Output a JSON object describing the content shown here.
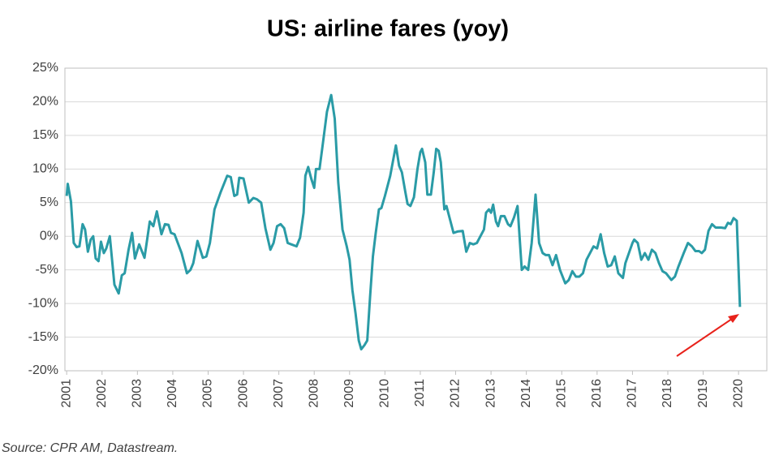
{
  "chart_data": {
    "type": "line",
    "title": "US: airline fares (yoy)",
    "source": "Source: CPR AM, Datastream.",
    "color": "#2a9ba6",
    "grid": true,
    "xlim": [
      2000.95,
      2020.8
    ],
    "xticks": [
      2001,
      2002,
      2003,
      2004,
      2005,
      2006,
      2007,
      2008,
      2009,
      2010,
      2011,
      2012,
      2013,
      2014,
      2015,
      2016,
      2017,
      2018,
      2019,
      2020
    ],
    "ylim": [
      -20,
      25
    ],
    "yticks": [
      {
        "value": -20,
        "label": "-20%"
      },
      {
        "value": -15,
        "label": "-15%"
      },
      {
        "value": -10,
        "label": "-10%"
      },
      {
        "value": -5,
        "label": "-5%"
      },
      {
        "value": 0,
        "label": "0%"
      },
      {
        "value": 5,
        "label": "5%"
      },
      {
        "value": 10,
        "label": "10%"
      },
      {
        "value": 15,
        "label": "15%"
      },
      {
        "value": 20,
        "label": "20%"
      },
      {
        "value": 25,
        "label": "25%"
      }
    ],
    "x": [
      2001.0,
      2001.03,
      2001.12,
      2001.2,
      2001.28,
      2001.36,
      2001.45,
      2001.52,
      2001.6,
      2001.68,
      2001.75,
      2001.82,
      2001.9,
      2001.97,
      2002.05,
      2002.12,
      2002.22,
      2002.35,
      2002.47,
      2002.56,
      2002.64,
      2002.75,
      2002.85,
      2002.93,
      2003.05,
      2003.2,
      2003.35,
      2003.45,
      2003.55,
      2003.68,
      2003.78,
      2003.88,
      2003.95,
      2004.05,
      2004.25,
      2004.4,
      2004.5,
      2004.58,
      2004.7,
      2004.85,
      2004.95,
      2005.05,
      2005.18,
      2005.35,
      2005.54,
      2005.64,
      2005.74,
      2005.82,
      2005.88,
      2006.0,
      2006.15,
      2006.28,
      2006.38,
      2006.5,
      2006.62,
      2006.76,
      2006.85,
      2006.95,
      2007.05,
      2007.15,
      2007.25,
      2007.35,
      2007.5,
      2007.6,
      2007.7,
      2007.75,
      2007.83,
      2007.92,
      2008.0,
      2008.05,
      2008.15,
      2008.25,
      2008.36,
      2008.48,
      2008.58,
      2008.68,
      2008.8,
      2008.92,
      2009.0,
      2009.08,
      2009.17,
      2009.26,
      2009.33,
      2009.42,
      2009.5,
      2009.58,
      2009.66,
      2009.74,
      2009.83,
      2009.9,
      2010.0,
      2010.15,
      2010.31,
      2010.4,
      2010.48,
      2010.58,
      2010.64,
      2010.72,
      2010.82,
      2010.92,
      2011.0,
      2011.05,
      2011.14,
      2011.2,
      2011.3,
      2011.38,
      2011.45,
      2011.52,
      2011.58,
      2011.68,
      2011.74,
      2011.84,
      2011.94,
      2012.05,
      2012.2,
      2012.3,
      2012.4,
      2012.5,
      2012.6,
      2012.7,
      2012.8,
      2012.86,
      2012.94,
      2013.0,
      2013.06,
      2013.14,
      2013.2,
      2013.28,
      2013.38,
      2013.48,
      2013.55,
      2013.65,
      2013.75,
      2013.87,
      2013.95,
      2014.05,
      2014.15,
      2014.26,
      2014.36,
      2014.46,
      2014.55,
      2014.64,
      2014.74,
      2014.84,
      2014.95,
      2015.1,
      2015.2,
      2015.3,
      2015.4,
      2015.5,
      2015.6,
      2015.7,
      2015.8,
      2015.9,
      2016.0,
      2016.1,
      2016.2,
      2016.3,
      2016.4,
      2016.5,
      2016.6,
      2016.73,
      2016.8,
      2016.9,
      2017.0,
      2017.05,
      2017.15,
      2017.25,
      2017.35,
      2017.45,
      2017.55,
      2017.65,
      2017.75,
      2017.85,
      2017.95,
      2018.1,
      2018.2,
      2018.3,
      2018.45,
      2018.57,
      2018.68,
      2018.78,
      2018.88,
      2018.96,
      2019.05,
      2019.15,
      2019.25,
      2019.35,
      2019.5,
      2019.62,
      2019.7,
      2019.78,
      2019.86,
      2019.95,
      2020.04
    ],
    "values": [
      6,
      7.8,
      5.2,
      -1,
      -1.6,
      -1.5,
      1.8,
      1,
      -2.3,
      -0.5,
      0,
      -3.3,
      -3.7,
      -0.8,
      -2.5,
      -1.8,
      0,
      -7.2,
      -8.5,
      -5.8,
      -5.5,
      -2,
      0.5,
      -3.3,
      -1.2,
      -3.2,
      2.2,
      1.5,
      3.7,
      0.3,
      1.8,
      1.7,
      0.5,
      0.3,
      -2.5,
      -5.5,
      -5,
      -4,
      -0.7,
      -3.2,
      -3,
      -1,
      4,
      6.5,
      9,
      8.8,
      6,
      6.2,
      8.7,
      8.6,
      5,
      5.7,
      5.5,
      5,
      1.2,
      -2,
      -1,
      1.5,
      1.8,
      1.2,
      -1,
      -1.2,
      -1.5,
      -0.2,
      3.5,
      9,
      10.3,
      8.5,
      7.2,
      10,
      10,
      14,
      18.5,
      21,
      17.5,
      8,
      1,
      -1.5,
      -3.5,
      -8,
      -11.5,
      -15.5,
      -16.8,
      -16.2,
      -15.5,
      -9,
      -3,
      0.5,
      4,
      4.2,
      6,
      9,
      13.5,
      10.5,
      9.5,
      6.5,
      4.8,
      4.5,
      5.8,
      10,
      12.5,
      13,
      11,
      6.2,
      6.2,
      9.5,
      13,
      12.7,
      11,
      4,
      4.5,
      2.5,
      0.5,
      0.7,
      0.8,
      -2.3,
      -1,
      -1.2,
      -1,
      0,
      1,
      3.5,
      4,
      3.5,
      4.7,
      2.2,
      1.5,
      3,
      3,
      1.8,
      1.5,
      2.8,
      4.5,
      -5,
      -4.5,
      -5,
      -1,
      6.2,
      -1,
      -2.5,
      -2.8,
      -2.8,
      -4.3,
      -2.8,
      -5,
      -7,
      -6.5,
      -5.2,
      -6,
      -6,
      -5.5,
      -3.5,
      -2.5,
      -1.5,
      -1.8,
      0.3,
      -2.5,
      -4.5,
      -4.3,
      -3,
      -5.5,
      -6.2,
      -4,
      -2.5,
      -1,
      -0.5,
      -1,
      -3.5,
      -2.5,
      -3.5,
      -2,
      -2.5,
      -4,
      -5.2,
      -5.5,
      -6.5,
      -6,
      -4.5,
      -2.5,
      -1,
      -1.5,
      -2.2,
      -2.2,
      -2.5,
      -2,
      0.8,
      1.8,
      1.3,
      1.3,
      1.2,
      2,
      1.8,
      2.7,
      2.3,
      -10.5
    ]
  }
}
